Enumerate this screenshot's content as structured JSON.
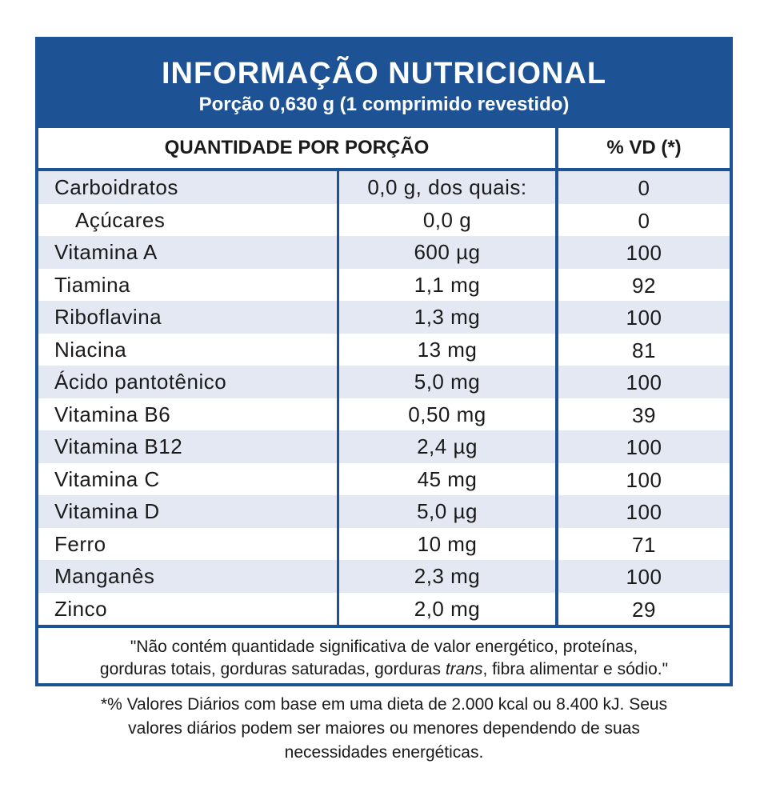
{
  "header": {
    "title": "INFORMAÇÃO NUTRICIONAL",
    "subtitle": "Porção 0,630 g (1 comprimido revestido)"
  },
  "columns": {
    "quantity": "QUANTIDADE POR PORÇÃO",
    "vd": "% VD (*)"
  },
  "rows": [
    {
      "name": "Carboidratos",
      "amount": "0,0 g, dos quais:",
      "vd": "0"
    },
    {
      "name": "Açúcares",
      "amount": "0,0 g",
      "vd": "0"
    },
    {
      "name": "Vitamina A",
      "amount": "600 µg",
      "vd": "100"
    },
    {
      "name": "Tiamina",
      "amount": "1,1 mg",
      "vd": "92"
    },
    {
      "name": "Riboflavina",
      "amount": "1,3 mg",
      "vd": "100"
    },
    {
      "name": "Niacina",
      "amount": "13 mg",
      "vd": "81"
    },
    {
      "name": "Ácido pantotênico",
      "amount": "5,0 mg",
      "vd": "100"
    },
    {
      "name": "Vitamina B6",
      "amount": "0,50 mg",
      "vd": "39"
    },
    {
      "name": "Vitamina B12",
      "amount": "2,4 µg",
      "vd": "100"
    },
    {
      "name": "Vitamina C",
      "amount": "45 mg",
      "vd": "100"
    },
    {
      "name": "Vitamina D",
      "amount": "5,0 µg",
      "vd": "100"
    },
    {
      "name": "Ferro",
      "amount": "10 mg",
      "vd": "71"
    },
    {
      "name": "Manganês",
      "amount": "2,3 mg",
      "vd": "100"
    },
    {
      "name": "Zinco",
      "amount": "2,0 mg",
      "vd": "29"
    }
  ],
  "note": {
    "line1": "\"Não contém quantidade significativa de valor energético, proteínas,",
    "line2_prefix": "gorduras totais, gorduras saturadas, gorduras ",
    "line2_italic": "trans",
    "line2_suffix": ", fibra alimentar e sódio.\""
  },
  "footer": {
    "line1": "*% Valores Diários com base em uma dieta de 2.000 kcal ou 8.400 kJ. Seus",
    "line2": "valores diários podem ser maiores ou menores dependendo de suas",
    "line3": "necessidades energéticas."
  },
  "colors": {
    "brand_blue": "#1d5394",
    "stripe": "#e3e8f3"
  }
}
